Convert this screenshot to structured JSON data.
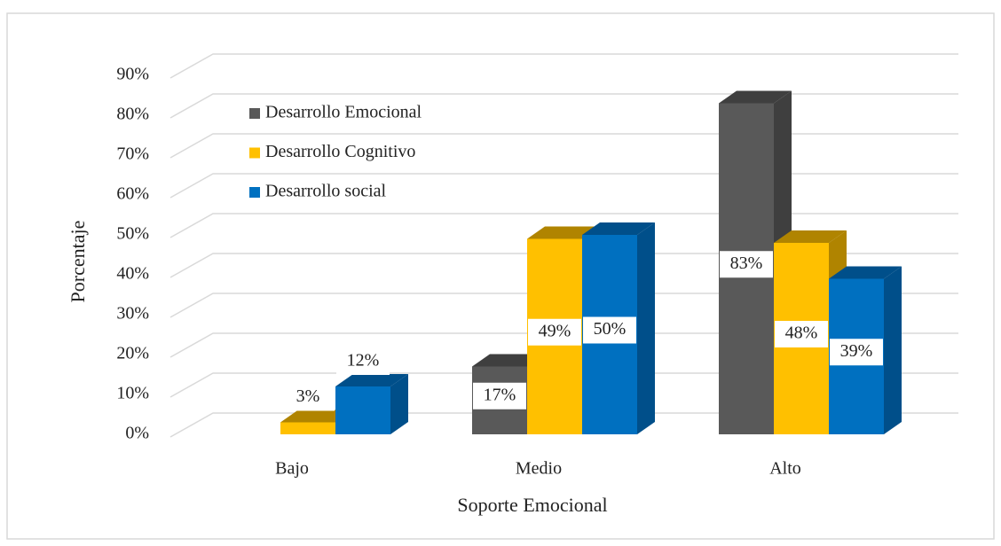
{
  "chart_data": {
    "type": "bar3d",
    "x_label": "Soporte Emocional",
    "y_label": "Porcentaje",
    "categories": [
      "Bajo",
      "Medio",
      "Alto"
    ],
    "series": [
      {
        "name": "Desarrollo Emocional",
        "color": "#595959",
        "side_color": "#3f3f3f",
        "values": [
          0,
          17,
          83
        ],
        "value_labels": [
          null,
          "17%",
          "83%"
        ]
      },
      {
        "name": "Desarrollo Cognitivo",
        "color": "#ffc000",
        "side_color": "#b08400",
        "values": [
          3,
          49,
          48
        ],
        "value_labels": [
          "3%",
          "49%",
          "48%"
        ]
      },
      {
        "name": "Desarrollo social",
        "color": "#0070c0",
        "side_color": "#004f8a",
        "values": [
          12,
          50,
          39
        ],
        "value_labels": [
          "12%",
          "50%",
          "39%"
        ]
      }
    ],
    "ylim": [
      0,
      90
    ],
    "yticks": [
      {
        "value": 0,
        "label": "0%"
      },
      {
        "value": 10,
        "label": "10%"
      },
      {
        "value": 20,
        "label": "20%"
      },
      {
        "value": 30,
        "label": "30%"
      },
      {
        "value": 40,
        "label": "40%"
      },
      {
        "value": 50,
        "label": "50%"
      },
      {
        "value": 60,
        "label": "60%"
      },
      {
        "value": 70,
        "label": "70%"
      },
      {
        "value": 80,
        "label": "80%"
      },
      {
        "value": 90,
        "label": "90%"
      }
    ],
    "grid": true,
    "legend": "upper left"
  }
}
